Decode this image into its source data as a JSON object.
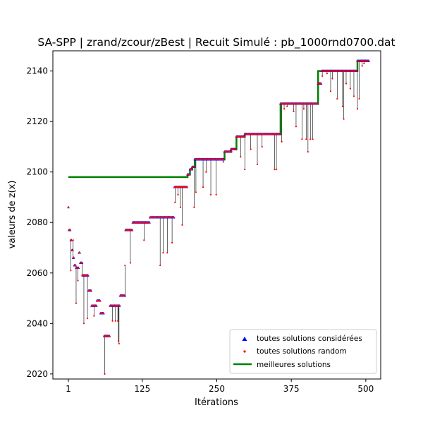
{
  "chart_data": {
    "type": "scatter",
    "title": "SA-SPP | zrand/zcour/zBest | Recuit Simulé : pb_1000rnd0700.dat",
    "xlabel": "Itérations",
    "ylabel": "valeurs de z(x)",
    "xlim": [
      -25,
      525
    ],
    "ylim": [
      2018,
      2148
    ],
    "x_ticks": [
      1,
      125,
      250,
      375,
      500
    ],
    "y_ticks": [
      2020,
      2040,
      2060,
      2080,
      2100,
      2120,
      2140
    ],
    "grid": false,
    "legend_position": "lower-right",
    "colors": {
      "current": "#0000ff",
      "random": "#ff0000",
      "best": "#008000",
      "connector": "#000000"
    },
    "series": [
      {
        "name": "toutes solutions considérées",
        "marker": "triangle",
        "color": "#0000ff",
        "segments": [
          {
            "x_start": 1,
            "x_end": 1,
            "y": 2086
          },
          {
            "x_start": 2,
            "x_end": 4,
            "y": 2077
          },
          {
            "x_start": 5,
            "x_end": 6,
            "y": 2073
          },
          {
            "x_start": 7,
            "x_end": 8,
            "y": 2069
          },
          {
            "x_start": 9,
            "x_end": 10,
            "y": 2066
          },
          {
            "x_start": 11,
            "x_end": 13,
            "y": 2063
          },
          {
            "x_start": 14,
            "x_end": 18,
            "y": 2062
          },
          {
            "x_start": 19,
            "x_end": 20,
            "y": 2068
          },
          {
            "x_start": 21,
            "x_end": 24,
            "y": 2064
          },
          {
            "x_start": 25,
            "x_end": 34,
            "y": 2059
          },
          {
            "x_start": 35,
            "x_end": 39,
            "y": 2053
          },
          {
            "x_start": 40,
            "x_end": 48,
            "y": 2047
          },
          {
            "x_start": 49,
            "x_end": 54,
            "y": 2049
          },
          {
            "x_start": 55,
            "x_end": 60,
            "y": 2044
          },
          {
            "x_start": 61,
            "x_end": 70,
            "y": 2035
          },
          {
            "x_start": 71,
            "x_end": 87,
            "y": 2047
          },
          {
            "x_start": 88,
            "x_end": 96,
            "y": 2051
          },
          {
            "x_start": 97,
            "x_end": 108,
            "y": 2077
          },
          {
            "x_start": 109,
            "x_end": 137,
            "y": 2080
          },
          {
            "x_start": 138,
            "x_end": 178,
            "y": 2082
          },
          {
            "x_start": 179,
            "x_end": 200,
            "y": 2094
          },
          {
            "x_start": 201,
            "x_end": 204,
            "y": 2099
          },
          {
            "x_start": 205,
            "x_end": 208,
            "y": 2101
          },
          {
            "x_start": 209,
            "x_end": 212,
            "y": 2102
          },
          {
            "x_start": 213,
            "x_end": 262,
            "y": 2105
          },
          {
            "x_start": 263,
            "x_end": 273,
            "y": 2108
          },
          {
            "x_start": 274,
            "x_end": 282,
            "y": 2109
          },
          {
            "x_start": 283,
            "x_end": 296,
            "y": 2114
          },
          {
            "x_start": 297,
            "x_end": 356,
            "y": 2115
          },
          {
            "x_start": 357,
            "x_end": 419,
            "y": 2127
          },
          {
            "x_start": 420,
            "x_end": 425,
            "y": 2135
          },
          {
            "x_start": 426,
            "x_end": 485,
            "y": 2140
          },
          {
            "x_start": 486,
            "x_end": 505,
            "y": 2144
          }
        ]
      },
      {
        "name": "toutes solutions random",
        "marker": "dot",
        "color": "#ff0000",
        "points": [
          [
            3,
            2077
          ],
          [
            5,
            2061
          ],
          [
            9,
            2073
          ],
          [
            14,
            2048
          ],
          [
            17,
            2057
          ],
          [
            20,
            2068
          ],
          [
            24,
            2059
          ],
          [
            27,
            2040
          ],
          [
            33,
            2042
          ],
          [
            37,
            2053
          ],
          [
            44,
            2043
          ],
          [
            51,
            2049
          ],
          [
            58,
            2044
          ],
          [
            62,
            2020
          ],
          [
            66,
            2035
          ],
          [
            72,
            2047
          ],
          [
            75,
            2041
          ],
          [
            78,
            2047
          ],
          [
            80,
            2041
          ],
          [
            82,
            2047
          ],
          [
            84,
            2041
          ],
          [
            85,
            2033
          ],
          [
            86,
            2032
          ],
          [
            96,
            2063
          ],
          [
            105,
            2064
          ],
          [
            112,
            2080
          ],
          [
            117,
            2080
          ],
          [
            128,
            2073
          ],
          [
            135,
            2080
          ],
          [
            145,
            2082
          ],
          [
            148,
            2082
          ],
          [
            155,
            2063
          ],
          [
            160,
            2068
          ],
          [
            167,
            2068
          ],
          [
            170,
            2082
          ],
          [
            175,
            2072
          ],
          [
            180,
            2088
          ],
          [
            182,
            2094
          ],
          [
            185,
            2091
          ],
          [
            189,
            2086
          ],
          [
            192,
            2079
          ],
          [
            195,
            2094
          ],
          [
            200,
            2094
          ],
          [
            212,
            2086
          ],
          [
            215,
            2092
          ],
          [
            224,
            2105
          ],
          [
            227,
            2094
          ],
          [
            232,
            2100
          ],
          [
            240,
            2091
          ],
          [
            249,
            2091
          ],
          [
            261,
            2104
          ],
          [
            265,
            2108
          ],
          [
            275,
            2108
          ],
          [
            286,
            2114
          ],
          [
            290,
            2106
          ],
          [
            297,
            2101
          ],
          [
            301,
            2115
          ],
          [
            307,
            2109
          ],
          [
            313,
            2115
          ],
          [
            318,
            2103
          ],
          [
            326,
            2110
          ],
          [
            331,
            2115
          ],
          [
            341,
            2115
          ],
          [
            347,
            2101
          ],
          [
            350,
            2101
          ],
          [
            353,
            2115
          ],
          [
            359,
            2112
          ],
          [
            363,
            2125
          ],
          [
            366,
            2127
          ],
          [
            368,
            2126
          ],
          [
            375,
            2127
          ],
          [
            379,
            2124
          ],
          [
            383,
            2118
          ],
          [
            386,
            2127
          ],
          [
            390,
            2127
          ],
          [
            393,
            2113
          ],
          [
            396,
            2125
          ],
          [
            400,
            2113
          ],
          [
            403,
            2108
          ],
          [
            405,
            2127
          ],
          [
            407,
            2113
          ],
          [
            411,
            2113
          ],
          [
            416,
            2127
          ],
          [
            422,
            2135
          ],
          [
            427,
            2138
          ],
          [
            431,
            2140
          ],
          [
            435,
            2139
          ],
          [
            441,
            2132
          ],
          [
            444,
            2137
          ],
          [
            447,
            2140
          ],
          [
            452,
            2129
          ],
          [
            456,
            2140
          ],
          [
            461,
            2126
          ],
          [
            463,
            2121
          ],
          [
            467,
            2135
          ],
          [
            470,
            2140
          ],
          [
            474,
            2133
          ],
          [
            480,
            2130
          ],
          [
            486,
            2125
          ],
          [
            489,
            2129
          ],
          [
            494,
            2142
          ],
          [
            497,
            2143
          ]
        ]
      },
      {
        "name": "meilleures solutions",
        "marker": "line",
        "color": "#008000",
        "steps": [
          [
            1,
            2098
          ],
          [
            200,
            2098
          ],
          [
            201,
            2099
          ],
          [
            205,
            2101
          ],
          [
            209,
            2102
          ],
          [
            213,
            2105
          ],
          [
            263,
            2108
          ],
          [
            274,
            2109
          ],
          [
            283,
            2114
          ],
          [
            297,
            2115
          ],
          [
            357,
            2127
          ],
          [
            420,
            2140
          ],
          [
            486,
            2144
          ],
          [
            505,
            2144
          ]
        ]
      }
    ]
  }
}
